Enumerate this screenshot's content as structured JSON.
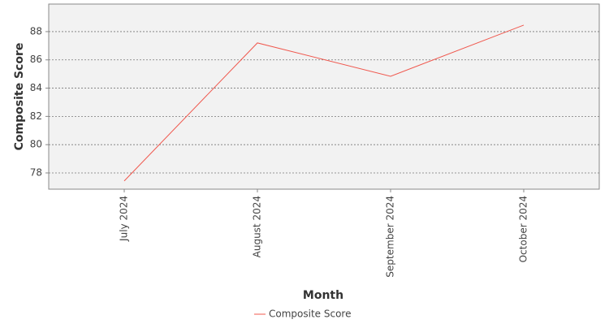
{
  "chart_data": {
    "type": "line",
    "x_label": "Month",
    "y_label": "Composite Score",
    "categories": [
      "July 2024",
      "August 2024",
      "September 2024",
      "October 2024"
    ],
    "series": [
      {
        "name": "Composite Score",
        "color": "#f0584e",
        "values": [
          77.43,
          87.2,
          84.84,
          88.46
        ]
      }
    ],
    "ylim": [
      76.85,
      89.95
    ],
    "yticks": [
      78,
      80,
      82,
      84,
      86,
      88
    ],
    "grid": true,
    "legend": "bottom"
  }
}
